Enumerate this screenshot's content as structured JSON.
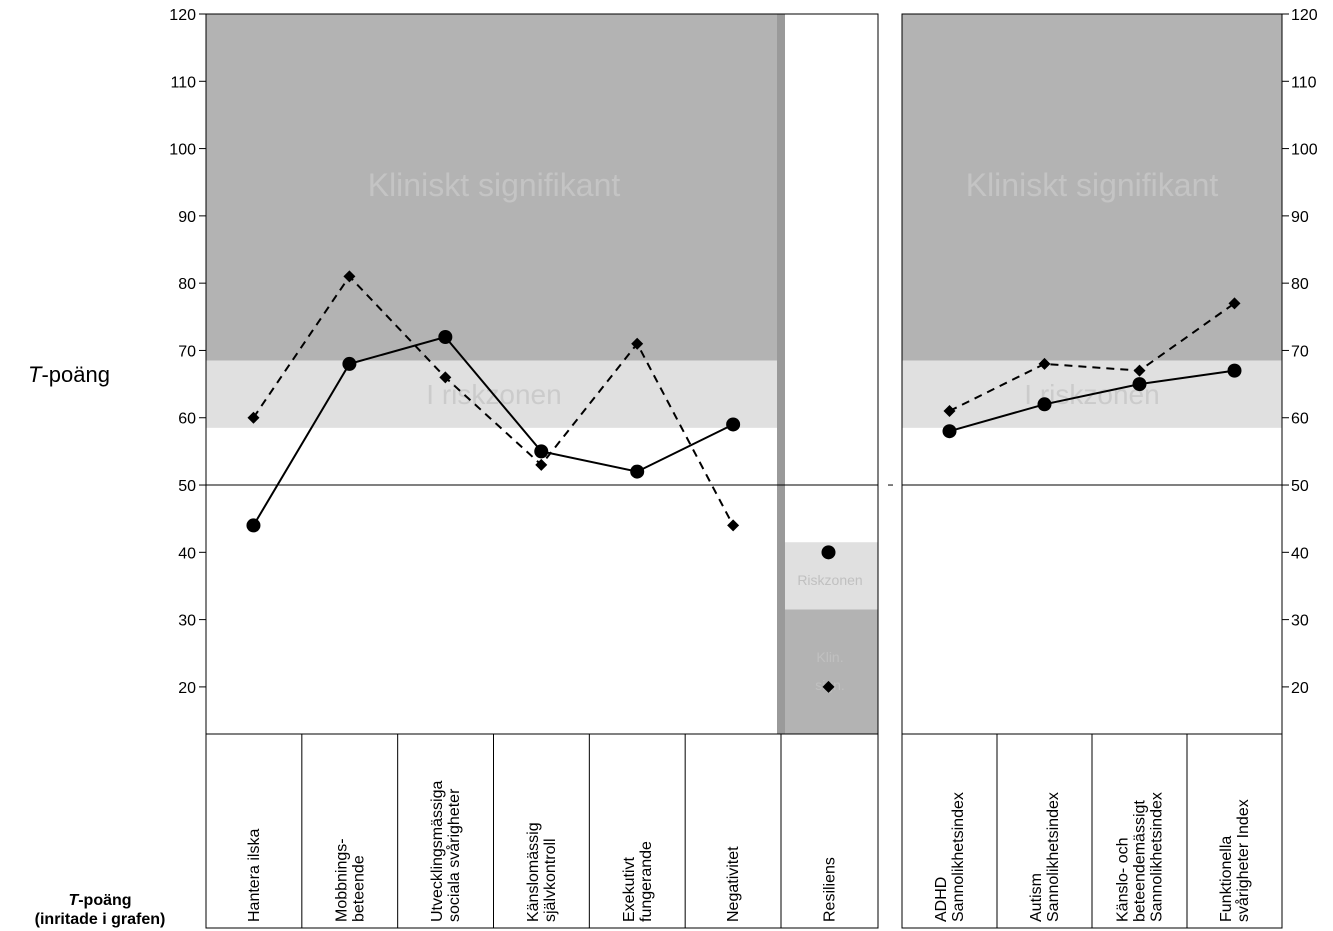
{
  "chart_data": {
    "type": "line",
    "ylabel_italic": "T",
    "ylabel_rest": "-poäng",
    "ylim": [
      13,
      120
    ],
    "yticks": [
      20,
      30,
      40,
      50,
      60,
      70,
      80,
      90,
      100,
      110,
      120
    ],
    "reference_line": 50,
    "zones": {
      "clinical_label": "Kliniskt signifikant",
      "risk_label_left": "I riskzonen",
      "risk_label_right": "I riskzonen",
      "resilience_risk_label": "Riskzonen",
      "resilience_clin_label_line1": "Klin.",
      "resilience_clin_label_line2": "sign.",
      "clinical_from": 68.5,
      "risk_from": 58.5,
      "resilience_risk_range": [
        31.5,
        41.5
      ],
      "resilience_clin_below": 31.5
    },
    "left_panel": {
      "categories": [
        [
          "Hantera ilska"
        ],
        [
          "Mobbnings-",
          "beteende"
        ],
        [
          "Utvecklingsmässiga",
          "sociala svårigheter"
        ],
        [
          "Känslomässig",
          "självkontroll"
        ],
        [
          "Exekutivt",
          "fungerande"
        ],
        [
          "Negativitet"
        ]
      ],
      "series": [
        {
          "style": "solid-circle",
          "values": [
            44,
            68,
            72,
            55,
            52,
            59
          ]
        },
        {
          "style": "dashed-diamond",
          "values": [
            60,
            81,
            66,
            53,
            71,
            44
          ]
        }
      ]
    },
    "resilience_panel": {
      "category": [
        "Resiliens"
      ],
      "solid_value": 40,
      "dashed_value": 20
    },
    "right_panel": {
      "categories": [
        [
          "ADHD",
          "Sannolikhetsindex"
        ],
        [
          "Autism",
          "Sannolikhetsindex"
        ],
        [
          "Känslo- och",
          "beteendemässigt",
          "Sannolikhetsindex"
        ],
        [
          "Funktionella",
          "svårigheter Index"
        ]
      ],
      "series": [
        {
          "style": "solid-circle",
          "values": [
            58,
            62,
            65,
            67
          ]
        },
        {
          "style": "dashed-diamond",
          "values": [
            61,
            68,
            67,
            77
          ]
        }
      ]
    },
    "legend_title_italic": "T",
    "legend_title_rest": "-poäng",
    "legend_subtitle": "(inritade i grafen)",
    "colors": {
      "clinical": "#b3b3b3",
      "risk": "#e0e0e0",
      "divider": "#9a9a9a",
      "line": "#000000"
    }
  }
}
